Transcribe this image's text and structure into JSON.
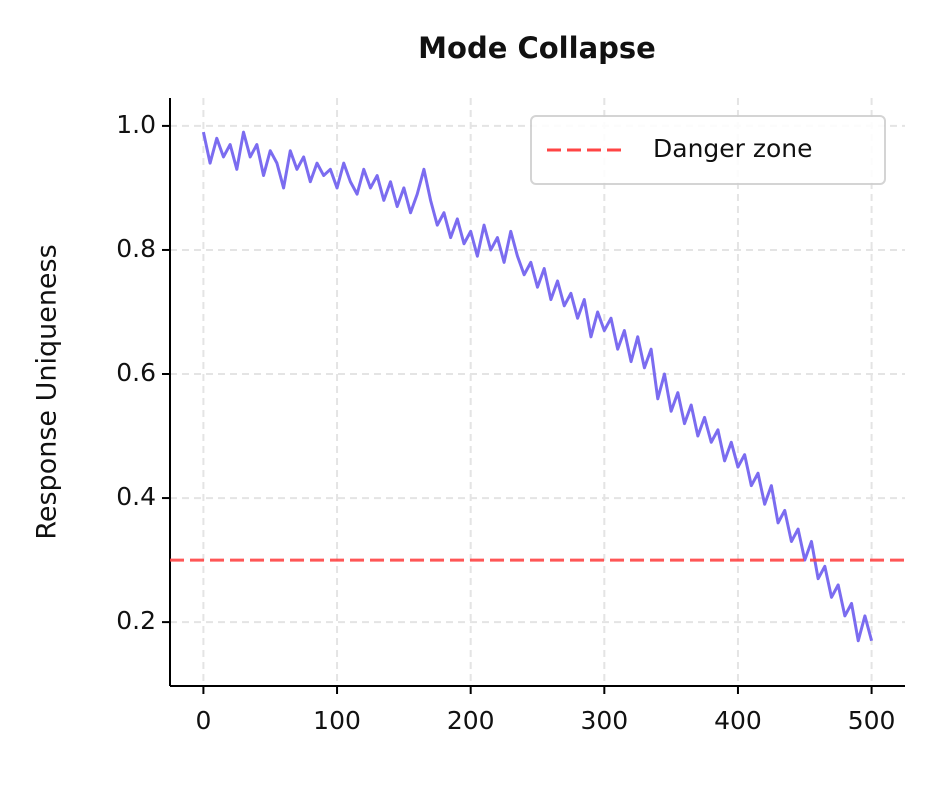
{
  "chart_data": {
    "type": "line",
    "title": "Mode Collapse",
    "y_label": "Response Uniqueness",
    "x": [
      0,
      5,
      10,
      15,
      20,
      25,
      30,
      35,
      40,
      45,
      50,
      55,
      60,
      65,
      70,
      75,
      80,
      85,
      90,
      95,
      100,
      105,
      110,
      115,
      120,
      125,
      130,
      135,
      140,
      145,
      150,
      155,
      160,
      165,
      170,
      175,
      180,
      185,
      190,
      195,
      200,
      205,
      210,
      215,
      220,
      225,
      230,
      235,
      240,
      245,
      250,
      255,
      260,
      265,
      270,
      275,
      280,
      285,
      290,
      295,
      300,
      305,
      310,
      315,
      320,
      325,
      330,
      335,
      340,
      345,
      350,
      355,
      360,
      365,
      370,
      375,
      380,
      385,
      390,
      395,
      400,
      405,
      410,
      415,
      420,
      425,
      430,
      435,
      440,
      445,
      450,
      455,
      460,
      465,
      470,
      475,
      480,
      485,
      490,
      495,
      500
    ],
    "series": [
      {
        "name": "Response uniqueness",
        "color": "#7b6cf0",
        "values": [
          0.99,
          0.94,
          0.98,
          0.95,
          0.97,
          0.93,
          0.99,
          0.95,
          0.97,
          0.92,
          0.96,
          0.94,
          0.9,
          0.96,
          0.93,
          0.95,
          0.91,
          0.94,
          0.92,
          0.93,
          0.9,
          0.94,
          0.91,
          0.89,
          0.93,
          0.9,
          0.92,
          0.88,
          0.91,
          0.87,
          0.9,
          0.86,
          0.89,
          0.93,
          0.88,
          0.84,
          0.86,
          0.82,
          0.85,
          0.81,
          0.83,
          0.79,
          0.84,
          0.8,
          0.82,
          0.78,
          0.83,
          0.79,
          0.76,
          0.78,
          0.74,
          0.77,
          0.72,
          0.75,
          0.71,
          0.73,
          0.69,
          0.72,
          0.66,
          0.7,
          0.67,
          0.69,
          0.64,
          0.67,
          0.62,
          0.66,
          0.61,
          0.64,
          0.56,
          0.6,
          0.54,
          0.57,
          0.52,
          0.55,
          0.5,
          0.53,
          0.49,
          0.51,
          0.46,
          0.49,
          0.45,
          0.47,
          0.42,
          0.44,
          0.39,
          0.42,
          0.36,
          0.38,
          0.33,
          0.35,
          0.3,
          0.33,
          0.27,
          0.29,
          0.24,
          0.26,
          0.21,
          0.23,
          0.17,
          0.21,
          0.17
        ]
      }
    ],
    "hlines": [
      {
        "name": "Danger zone",
        "value": 0.3,
        "color": "#ff4444"
      }
    ],
    "xlim": [
      -25,
      525
    ],
    "xticks": [
      0,
      100,
      200,
      300,
      400,
      500
    ],
    "ylim": [
      0.097,
      1.045
    ],
    "yticks": [
      0.2,
      0.4,
      0.6,
      0.8,
      {
        "value": 1,
        "label": "1.0"
      }
    ],
    "grid": true,
    "legend": "upper right"
  }
}
